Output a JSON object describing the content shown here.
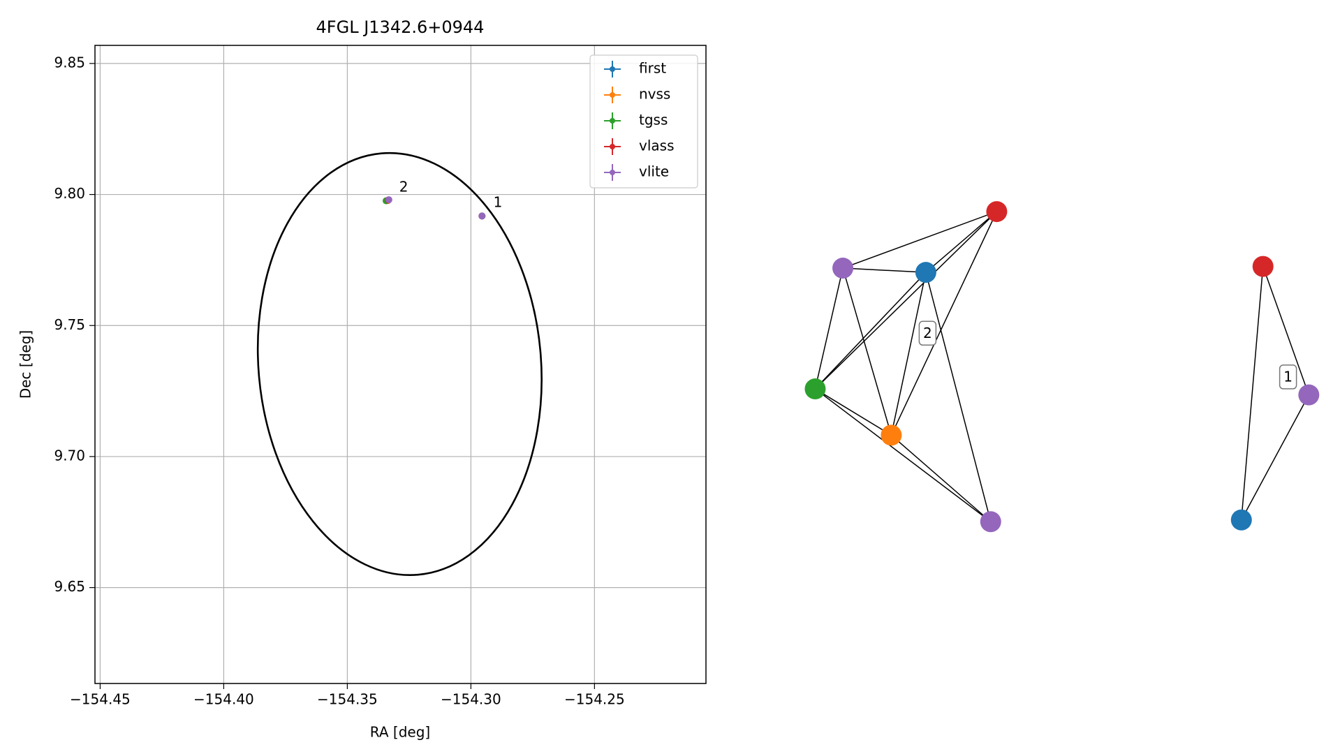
{
  "chart_data": [
    {
      "type": "scatter",
      "title": "4FGL J1342.6+0944",
      "x_label": "RA [deg]",
      "y_label": "Dec [deg]",
      "xlim": [
        -154.4521,
        -154.2049
      ],
      "ylim": [
        9.6134,
        9.8569
      ],
      "xticks": [
        {
          "value": -154.45,
          "label": "−154.45"
        },
        {
          "value": -154.4,
          "label": "−154.40"
        },
        {
          "value": -154.35,
          "label": "−154.35"
        },
        {
          "value": -154.3,
          "label": "−154.30"
        },
        {
          "value": -154.25,
          "label": "−154.25"
        }
      ],
      "yticks": [
        9.65,
        {
          "value": 9.7,
          "label": "9.70"
        },
        9.75,
        {
          "value": 9.8,
          "label": "9.80"
        },
        9.85
      ],
      "grid": true,
      "legend": "upper right",
      "series": [
        {
          "name": "first",
          "color": "#1f77b4",
          "x": [
            -154.3335,
            -154.2955
          ],
          "y": [
            9.7978,
            9.7918
          ]
        },
        {
          "name": "nvss",
          "color": "#ff7f0e",
          "x": [
            -154.3336
          ],
          "y": [
            9.7977
          ]
        },
        {
          "name": "tgss",
          "color": "#2ca02c",
          "x": [
            -154.3343
          ],
          "y": [
            9.7976
          ]
        },
        {
          "name": "vlass",
          "color": "#d62728",
          "x": [
            -154.3334,
            -154.2955
          ],
          "y": [
            9.7979,
            9.7918
          ]
        },
        {
          "name": "vlite",
          "color": "#9467bd",
          "x": [
            -154.3332,
            -154.2955
          ],
          "y": [
            9.798,
            9.7918
          ]
        }
      ],
      "annotations": [
        {
          "text": "1",
          "x": -154.2909,
          "y": 9.7967
        },
        {
          "text": "2",
          "x": -154.329,
          "y": 9.8026
        }
      ],
      "ellipse": {
        "center": [
          -154.3288,
          9.7353
        ],
        "width": 0.1143,
        "height": 0.1614,
        "angle": -5,
        "color": "#000000"
      }
    },
    {
      "type": "graph",
      "nodes": [
        {
          "color": "#d62728"
        },
        {
          "color": "#9467bd"
        },
        {
          "color": "#1f77b4"
        },
        {
          "color": "#2ca02c"
        },
        {
          "color": "#ff7f0e"
        },
        {
          "color": "#9467bd"
        },
        {
          "color": "#d62728"
        },
        {
          "color": "#9467bd"
        },
        {
          "color": "#1f77b4"
        }
      ],
      "edges": [
        [
          1,
          0
        ],
        [
          1,
          2
        ],
        [
          1,
          3
        ],
        [
          1,
          4
        ],
        [
          2,
          0
        ],
        [
          2,
          3
        ],
        [
          2,
          4
        ],
        [
          2,
          5
        ],
        [
          3,
          0
        ],
        [
          3,
          4
        ],
        [
          3,
          5
        ],
        [
          4,
          0
        ],
        [
          4,
          5
        ],
        [
          6,
          7
        ],
        [
          6,
          8
        ],
        [
          7,
          8
        ]
      ],
      "labels": [
        "2",
        "1"
      ]
    }
  ]
}
